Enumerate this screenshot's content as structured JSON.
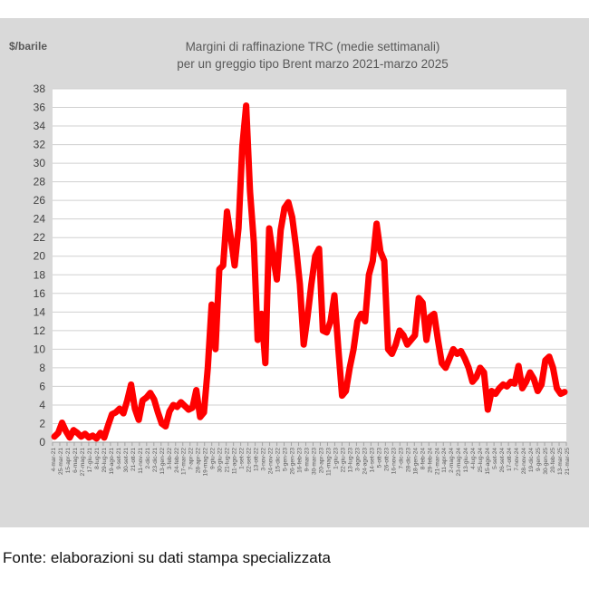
{
  "chart_data": {
    "type": "line",
    "title_line1": "Margini di raffinazione TRC (medie settimanali)",
    "title_line2": "per un greggio tipo Brent marzo 2021-marzo 2025",
    "ylabel": "$/barile",
    "xlabel": "",
    "ylim": [
      0,
      38
    ],
    "yticks": [
      0,
      2,
      4,
      6,
      8,
      10,
      12,
      14,
      16,
      18,
      20,
      22,
      24,
      26,
      28,
      30,
      32,
      34,
      36,
      38
    ],
    "grid": true,
    "legend": "none",
    "line_color": "#ff0000",
    "x_tick_labels": [
      "4-mar-21",
      "25-mar-21",
      "15-apr-21",
      "6-mag-21",
      "27-mag-21",
      "17-giu-21",
      "8-lug-21",
      "29-lug-21",
      "19-ago-21",
      "9-set-21",
      "30-set-21",
      "21-ott-21",
      "11-nov-21",
      "2-dic-21",
      "23-dic-21",
      "13-gen-22",
      "3-feb-22",
      "24-feb-22",
      "17-mar-22",
      "7-apr-22",
      "28-apr-22",
      "19-mag-22",
      "9-giu-22",
      "30-giu-22",
      "21-lug-22",
      "11-ago-22",
      "1-set-22",
      "22-set-22",
      "13-ott-22",
      "3-nov-22",
      "24-nov-22",
      "15-dic-22",
      "5-gen-23",
      "26-gen-23",
      "16-feb-23",
      "9-mar-23",
      "30-mar-23",
      "20-apr-23",
      "11-mag-23",
      "1-giu-23",
      "22-giu-23",
      "13-lug-23",
      "3-ago-23",
      "24-ago-23",
      "14-set-23",
      "5-ott-23",
      "26-ott-23",
      "16-nov-23",
      "7-dic-23",
      "28-dic-23",
      "18-gen-24",
      "8-feb-24",
      "29-feb-24",
      "21-mar-24",
      "11-apr-24",
      "2-mag-24",
      "23-mag-24",
      "13-giu-24",
      "4-lug-24",
      "25-lug-24",
      "15-ago-24",
      "5-set-24",
      "26-set-24",
      "17-ott-24",
      "7-nov-24",
      "28-nov-24",
      "19-dic-24",
      "9-gen-25",
      "30-gen-25",
      "20-feb-25",
      "13-mar-25",
      "21-mar-25"
    ],
    "series": [
      {
        "values": [
          0.6,
          1.0,
          2.1,
          1.2,
          0.5,
          1.3,
          1.0,
          0.6,
          0.9,
          0.5,
          0.7,
          0.4,
          1.0,
          0.5,
          1.8,
          3.0,
          3.2,
          3.6,
          3.1,
          4.5,
          6.2,
          3.6,
          2.4,
          4.5,
          4.8,
          5.3,
          4.6,
          3.2,
          2.0,
          1.7,
          3.3,
          4.0,
          3.8,
          4.3,
          3.9,
          3.5,
          3.7,
          5.6,
          2.7,
          3.2,
          8.0,
          14.8,
          10.0,
          18.6,
          19.0,
          24.8,
          22.0,
          19.0,
          23.0,
          31.8,
          36.2,
          27.0,
          21.5,
          11.0,
          13.8,
          8.5,
          23.0,
          20.0,
          17.5,
          22.8,
          25.2,
          25.8,
          24.2,
          21.0,
          17.0,
          10.5,
          13.5,
          17.0,
          20.0,
          20.8,
          12.0,
          11.8,
          13.0,
          15.8,
          10.2,
          5.0,
          5.5,
          8.0,
          10.0,
          13.0,
          13.8,
          13.0,
          18.0,
          19.5,
          23.5,
          20.5,
          19.5,
          10.0,
          9.5,
          10.5,
          12.0,
          11.5,
          10.5,
          11.0,
          11.5,
          15.5,
          15.0,
          11.0,
          13.5,
          13.8,
          11.0,
          8.5,
          8.0,
          9.0,
          10.0,
          9.5,
          9.8,
          9.0,
          8.0,
          6.5,
          7.0,
          8.0,
          7.5,
          3.5,
          5.5,
          5.2,
          5.8,
          6.2,
          6.0,
          6.5,
          6.3,
          8.2,
          5.8,
          6.5,
          7.5,
          6.8,
          5.5,
          6.2,
          8.8,
          9.2,
          8.0,
          5.8,
          5.2,
          5.4
        ]
      }
    ]
  },
  "source_note": "Fonte: elaborazioni su dati stampa specializzata"
}
